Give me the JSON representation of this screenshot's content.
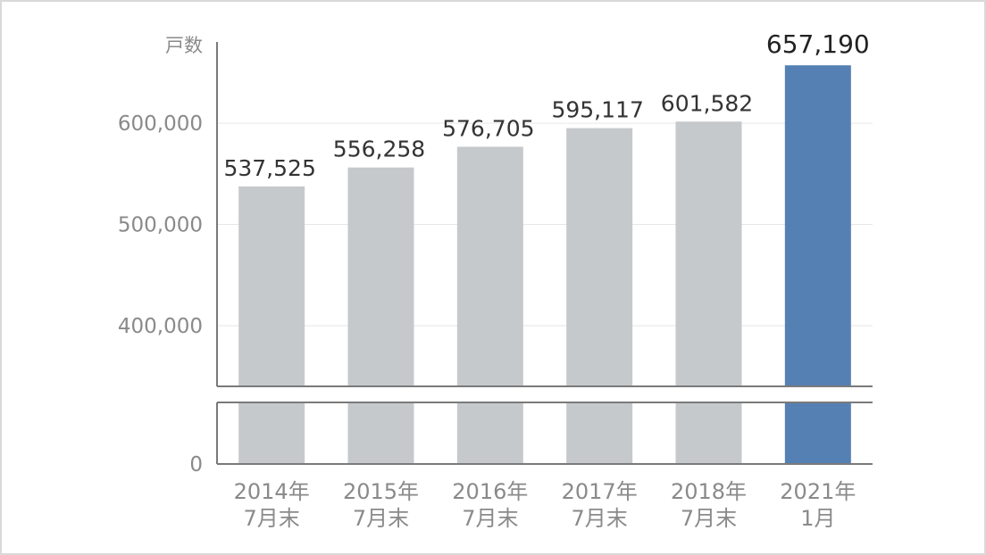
{
  "chart_data": {
    "type": "bar",
    "y_unit_label": "戸数",
    "categories": [
      [
        "2014年",
        "7月末"
      ],
      [
        "2015年",
        "7月末"
      ],
      [
        "2016年",
        "7月末"
      ],
      [
        "2017年",
        "7月末"
      ],
      [
        "2018年",
        "7月末"
      ],
      [
        "2021年",
        "1月"
      ]
    ],
    "values": [
      537525,
      556258,
      576705,
      595117,
      601582,
      657190
    ],
    "value_labels": [
      "537,525",
      "556,258",
      "576,705",
      "595,117",
      "601,582",
      "657,190"
    ],
    "highlight_index": 5,
    "yticks": [
      {
        "value": 0,
        "label": "0"
      },
      {
        "value": 400000,
        "label": "400,000"
      },
      {
        "value": 500000,
        "label": "500,000"
      },
      {
        "value": 600000,
        "label": "600,000"
      }
    ],
    "axis_break": true,
    "ylim_upper_segment": [
      340000,
      660000
    ],
    "grid": true,
    "colors": {
      "bar": "#c6c9cc",
      "highlight": "#5580b3",
      "axis": "#7a7a7a",
      "grid": "#e6e6e6"
    }
  }
}
